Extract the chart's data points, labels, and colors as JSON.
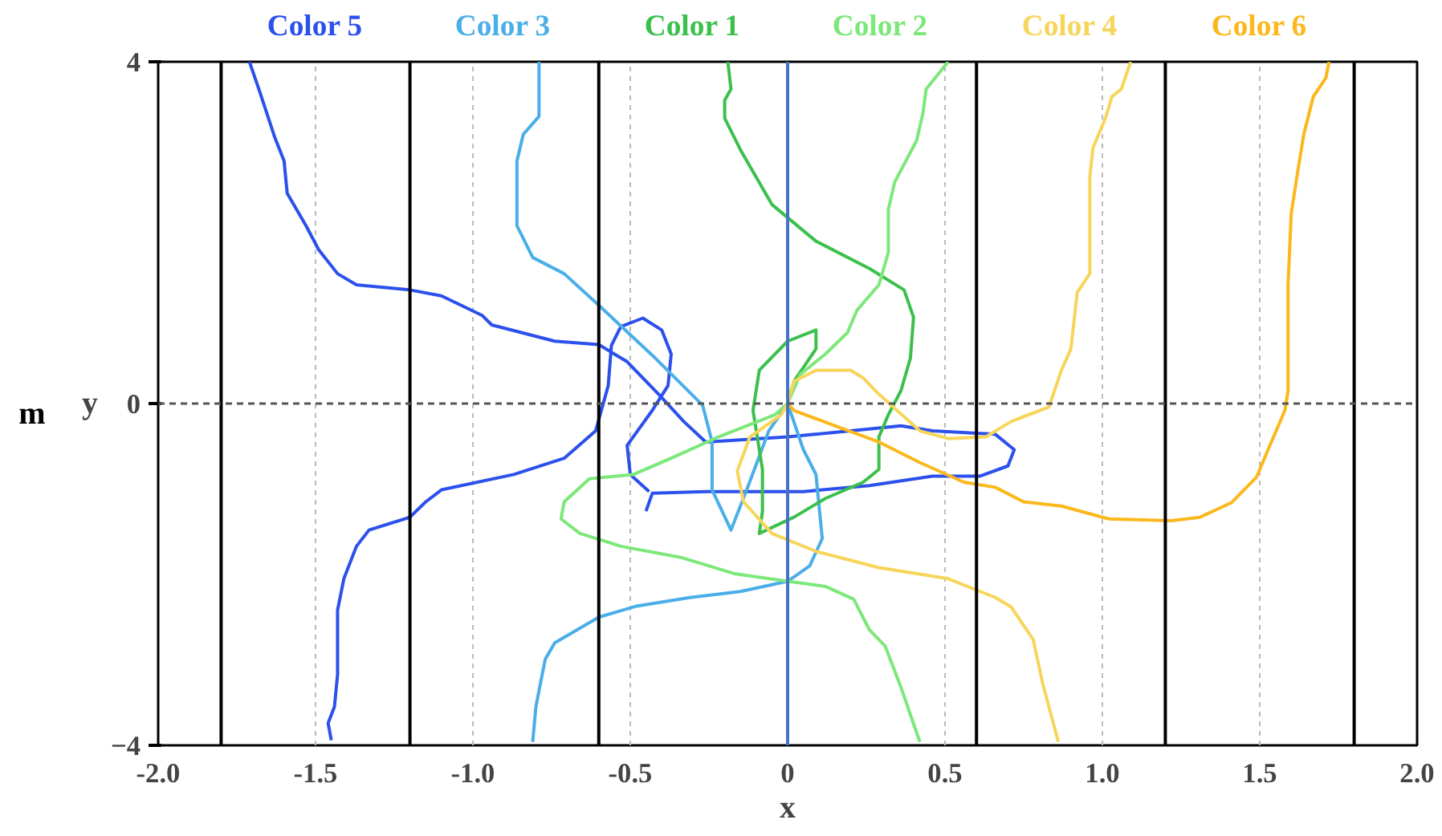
{
  "chart_data": {
    "type": "line",
    "xlabel": "x",
    "ylabel": "y",
    "annotations": [
      "m"
    ],
    "xlim": [
      -2,
      2
    ],
    "ylim": [
      -4,
      4
    ],
    "xticks": [
      {
        "value": -2,
        "label": "-2.0"
      },
      {
        "value": -1.5,
        "label": "-1.5"
      },
      {
        "value": -1,
        "label": "-1.0"
      },
      {
        "value": -0.5,
        "label": "-0.5"
      },
      0,
      {
        "value": 0.5,
        "label": "0.5"
      },
      {
        "value": 1,
        "label": "1.0"
      },
      {
        "value": 1.5,
        "label": "1.5"
      },
      {
        "value": 2,
        "label": "2.0"
      }
    ],
    "yticks": [
      -4,
      0,
      4
    ],
    "grid": "x",
    "marker": "none",
    "line_style": "solid",
    "ref_lines": [
      {
        "axis": "x",
        "value": -1.8,
        "label": null,
        "color": "#000000",
        "line_style": "solid"
      },
      {
        "axis": "x",
        "value": -1.2,
        "label": null,
        "color": "#000000",
        "line_style": "solid"
      },
      {
        "axis": "x",
        "value": -0.6,
        "label": null,
        "color": "#000000",
        "line_style": "solid"
      },
      {
        "axis": "x",
        "value": 0.6,
        "label": null,
        "color": "#000000",
        "line_style": "solid"
      },
      {
        "axis": "x",
        "value": 1.2,
        "label": null,
        "color": "#000000",
        "line_style": "solid"
      },
      {
        "axis": "x",
        "value": 1.8,
        "label": null,
        "color": "#000000",
        "line_style": "solid"
      },
      {
        "axis": "x",
        "value": 0,
        "label": null,
        "color": "#4472c4",
        "line_style": "solid"
      },
      {
        "axis": "y",
        "value": 0,
        "label": null,
        "color": "#555555",
        "line_style": "dashed"
      }
    ],
    "series": [
      {
        "name": "Color 5",
        "color": "#2b50ec",
        "x": [
          -1.71,
          -1.68,
          -1.63,
          -1.6,
          -1.59,
          -1.53,
          -1.49,
          -1.43,
          -1.37,
          -1.2,
          -1.1,
          -0.97,
          -0.94,
          -0.74,
          -0.6,
          -0.51,
          -0.41,
          -0.33,
          -0.26,
          0,
          0.2,
          0.36,
          0.46,
          0.66,
          0.72,
          0.7,
          0.61,
          0.46,
          0.26,
          0.05,
          -0.26,
          -0.43,
          -0.45,
          null,
          -0.44,
          -0.5,
          -0.51,
          -0.43,
          -0.38,
          -0.37,
          -0.4,
          -0.46,
          -0.53,
          -0.56,
          -0.57,
          -0.61,
          -0.71,
          -0.87,
          -1.1,
          -1.15,
          -1.2,
          -1.33,
          -1.37,
          -1.41,
          -1.43,
          -1.43,
          -1.44,
          -1.46,
          -1.45
        ],
        "values": [
          4.0,
          3.68,
          3.12,
          2.84,
          2.46,
          2.08,
          1.8,
          1.52,
          1.39,
          1.33,
          1.26,
          1.03,
          0.92,
          0.73,
          0.69,
          0.49,
          0.11,
          -0.21,
          -0.45,
          -0.39,
          -0.32,
          -0.26,
          -0.32,
          -0.36,
          -0.54,
          -0.73,
          -0.85,
          -0.85,
          -0.96,
          -1.03,
          -1.03,
          -1.05,
          -1.26,
          null,
          -1.03,
          -0.83,
          -0.49,
          -0.08,
          0.21,
          0.58,
          0.86,
          1.0,
          0.9,
          0.68,
          0.21,
          -0.32,
          -0.64,
          -0.83,
          -1.01,
          -1.15,
          -1.33,
          -1.48,
          -1.67,
          -2.05,
          -2.42,
          -3.17,
          -3.55,
          -3.74,
          -3.94
        ]
      },
      {
        "name": "Color 3",
        "color": "#4aaee8",
        "x": [
          -0.79,
          -0.79,
          -0.84,
          -0.86,
          -0.86,
          -0.81,
          -0.71,
          -0.6,
          -0.42,
          -0.27,
          -0.24,
          -0.24,
          -0.18,
          -0.13,
          -0.06,
          0,
          0.05,
          0.09,
          0.11,
          0.07,
          0,
          -0.15,
          -0.31,
          -0.48,
          -0.6,
          -0.67,
          -0.74,
          -0.77,
          -0.79,
          -0.8,
          -0.81
        ],
        "values": [
          4.0,
          3.36,
          3.15,
          2.84,
          2.08,
          1.71,
          1.52,
          1.15,
          0.53,
          -0.02,
          -0.45,
          -1.01,
          -1.48,
          -1.01,
          -0.32,
          0,
          -0.54,
          -0.83,
          -1.58,
          -1.9,
          -2.08,
          -2.2,
          -2.27,
          -2.37,
          -2.5,
          -2.65,
          -2.8,
          -2.99,
          -3.36,
          -3.55,
          -3.96
        ]
      },
      {
        "name": "Color 1",
        "color": "#3cc04c",
        "x": [
          -0.19,
          -0.18,
          -0.2,
          -0.2,
          -0.15,
          -0.05,
          0.09,
          0.26,
          0.37,
          0.4,
          0.39,
          0.36,
          0.32,
          0.29,
          0.29,
          0.24,
          0.12,
          0.02,
          -0.09,
          -0.08,
          -0.08,
          -0.11,
          -0.09,
          0,
          0.09,
          0.09,
          0.02,
          0
        ],
        "values": [
          4.0,
          3.68,
          3.55,
          3.34,
          2.97,
          2.33,
          1.9,
          1.58,
          1.33,
          1.01,
          0.53,
          0.15,
          -0.13,
          -0.39,
          -0.77,
          -0.92,
          -1.11,
          -1.33,
          -1.52,
          -1.26,
          -0.77,
          -0.08,
          0.39,
          0.73,
          0.86,
          0.64,
          0.26,
          0
        ]
      },
      {
        "name": "Color 2",
        "color": "#7de87a",
        "x": [
          0.51,
          0.44,
          0.43,
          0.41,
          0.34,
          0.32,
          0.32,
          0.29,
          0.22,
          0.19,
          0.12,
          0.04,
          0,
          -0.04,
          -0.22,
          -0.37,
          -0.49,
          -0.63,
          -0.71,
          -0.72,
          -0.66,
          -0.53,
          -0.34,
          -0.17,
          0,
          0.12,
          0.21,
          0.26,
          0.31,
          0.36,
          0.42
        ],
        "values": [
          4.0,
          3.68,
          3.4,
          3.08,
          2.59,
          2.27,
          1.77,
          1.39,
          1.09,
          0.83,
          0.58,
          0.34,
          0,
          -0.13,
          -0.39,
          -0.64,
          -0.83,
          -0.88,
          -1.15,
          -1.35,
          -1.52,
          -1.67,
          -1.8,
          -1.99,
          -2.08,
          -2.14,
          -2.29,
          -2.65,
          -2.84,
          -3.32,
          -3.96
        ]
      },
      {
        "name": "Color 4",
        "color": "#f7d55a",
        "x": [
          1.09,
          1.06,
          1.03,
          1.01,
          0.97,
          0.96,
          0.96,
          0.92,
          0.9,
          0.87,
          0.83,
          0.71,
          0.63,
          0.51,
          0.42,
          0.29,
          0.24,
          0.2,
          0.09,
          0.02,
          0,
          -0.02,
          -0.12,
          -0.16,
          -0.14,
          -0.05,
          0.09,
          0.29,
          0.51,
          0.66,
          0.71,
          0.78,
          0.81,
          0.86
        ],
        "values": [
          4.0,
          3.68,
          3.59,
          3.34,
          2.99,
          2.65,
          1.52,
          1.3,
          0.64,
          0.39,
          -0.04,
          -0.21,
          -0.39,
          -0.41,
          -0.32,
          0.11,
          0.3,
          0.39,
          0.39,
          0.26,
          0,
          -0.13,
          -0.39,
          -0.79,
          -1.15,
          -1.52,
          -1.73,
          -1.92,
          -2.05,
          -2.27,
          -2.38,
          -2.76,
          -3.27,
          -3.96
        ]
      },
      {
        "name": "Color 6",
        "color": "#fbb81c",
        "x": [
          1.72,
          1.71,
          1.67,
          1.64,
          1.62,
          1.6,
          1.59,
          1.59,
          1.59,
          1.58,
          1.53,
          1.49,
          1.41,
          1.31,
          1.22,
          1.02,
          0.87,
          0.75,
          0.66,
          0.56,
          0.42,
          0.29,
          0.15,
          0.02,
          0
        ],
        "values": [
          4.0,
          3.81,
          3.59,
          3.15,
          2.7,
          2.22,
          1.39,
          0.53,
          0.15,
          -0.08,
          -0.51,
          -0.86,
          -1.16,
          -1.33,
          -1.37,
          -1.35,
          -1.2,
          -1.15,
          -0.98,
          -0.92,
          -0.69,
          -0.45,
          -0.26,
          -0.08,
          0
        ]
      }
    ]
  }
}
